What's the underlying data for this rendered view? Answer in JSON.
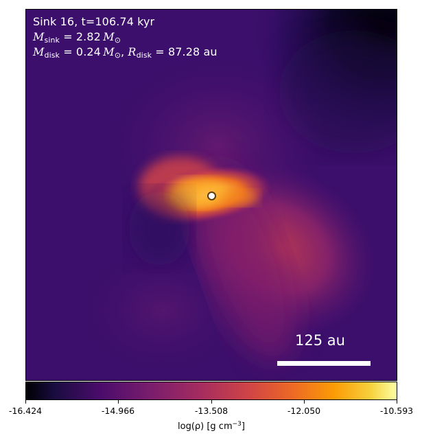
{
  "annotation": {
    "sink_line": "Sink 16, t=106.74 kyr",
    "m_sink_symbol": "M",
    "m_sink_sub": "sink",
    "m_sink_value": " = 2.82",
    "m_sun_symbol": "M",
    "m_sun_sub": "⊙",
    "m_disk_symbol": "M",
    "m_disk_sub": "disk",
    "m_disk_value": " = 0.24",
    "r_disk_separator": ", ",
    "r_disk_symbol": "R",
    "r_disk_sub": "disk",
    "r_disk_value": " = 87.28 au"
  },
  "scale_bar": {
    "label": "125 au"
  },
  "colorbar": {
    "ticks": [
      "-16.424",
      "-14.966",
      "-13.508",
      "-12.050",
      "-10.593"
    ],
    "label_main": "log(ρ) [g cm",
    "label_sup": "−3",
    "label_end": "]",
    "colormap": "inferno"
  },
  "colors": {
    "background_dark": "#000004",
    "diffuse_purple": "#3d0f6c",
    "bright_core": "#fbb535",
    "marker_fill": "#ffffff",
    "marker_edge": "#5a3b08"
  }
}
